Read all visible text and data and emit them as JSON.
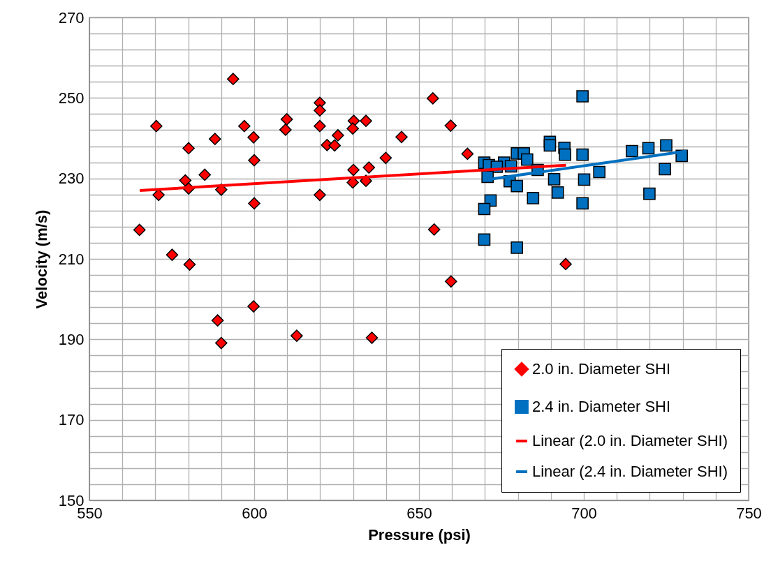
{
  "chart_data": {
    "type": "scatter",
    "xlabel": "Pressure (psi)",
    "ylabel": "Velocity (m/s)",
    "xlim": [
      550,
      750
    ],
    "ylim": [
      150,
      270
    ],
    "xticks": [
      550,
      {
        "value": 560,
        "label": null
      },
      {
        "value": 570,
        "label": null
      },
      {
        "value": 580,
        "label": null
      },
      {
        "value": 590,
        "label": null
      },
      600,
      {
        "value": 610,
        "label": null
      },
      {
        "value": 620,
        "label": null
      },
      {
        "value": 630,
        "label": null
      },
      {
        "value": 640,
        "label": null
      },
      650,
      {
        "value": 660,
        "label": null
      },
      {
        "value": 670,
        "label": null
      },
      {
        "value": 680,
        "label": null
      },
      {
        "value": 690,
        "label": null
      },
      700,
      {
        "value": 710,
        "label": null
      },
      {
        "value": 720,
        "label": null
      },
      {
        "value": 730,
        "label": null
      },
      {
        "value": 740,
        "label": null
      },
      750
    ],
    "yticks": [
      150,
      {
        "value": 154,
        "label": null
      },
      {
        "value": 158,
        "label": null
      },
      {
        "value": 162,
        "label": null
      },
      {
        "value": 166,
        "label": null
      },
      170,
      {
        "value": 174,
        "label": null
      },
      {
        "value": 178,
        "label": null
      },
      {
        "value": 182,
        "label": null
      },
      {
        "value": 186,
        "label": null
      },
      190,
      {
        "value": 194,
        "label": null
      },
      {
        "value": 198,
        "label": null
      },
      {
        "value": 202,
        "label": null
      },
      {
        "value": 206,
        "label": null
      },
      210,
      {
        "value": 214,
        "label": null
      },
      {
        "value": 218,
        "label": null
      },
      {
        "value": 222,
        "label": null
      },
      {
        "value": 226,
        "label": null
      },
      230,
      {
        "value": 234,
        "label": null
      },
      {
        "value": 238,
        "label": null
      },
      {
        "value": 242,
        "label": null
      },
      {
        "value": 246,
        "label": null
      },
      250,
      {
        "value": 254,
        "label": null
      },
      {
        "value": 258,
        "label": null
      },
      {
        "value": 262,
        "label": null
      },
      {
        "value": 266,
        "label": null
      },
      270
    ],
    "grid": true,
    "legend": "bottom right",
    "series": [
      {
        "name": "2.0 in. Diameter SHI",
        "marker": "diamond",
        "color": "#ff0000",
        "x": [
          593.6,
          619.9,
          619.9,
          570.3,
          597.0,
          609.9,
          609.5,
          619.9,
          588.1,
          599.8,
          580.1,
          622.1,
          600.0,
          585.0,
          579.1,
          580.1,
          590.0,
          571.0,
          619.9,
          600.0,
          565.2,
          575.1,
          580.4,
          599.8,
          588.9,
          590.0,
          612.9,
          630.2,
          629.9,
          633.9,
          625.4,
          624.4,
          644.7,
          654.2,
          659.6,
          664.7,
          639.9,
          630.1,
          634.8,
          629.9,
          633.9,
          654.6,
          659.7,
          635.7,
          694.5
        ],
        "values": [
          254.7,
          248.8,
          246.9,
          243.0,
          243.0,
          244.7,
          242.1,
          243.0,
          239.8,
          240.2,
          237.5,
          238.3,
          234.5,
          230.9,
          229.5,
          227.5,
          227.2,
          225.9,
          225.9,
          223.8,
          217.2,
          211.0,
          208.6,
          198.2,
          194.7,
          189.1,
          190.9,
          244.3,
          242.4,
          244.3,
          240.7,
          238.2,
          240.3,
          249.9,
          243.1,
          236.1,
          235.1,
          232.1,
          232.7,
          229.0,
          229.4,
          217.3,
          204.4,
          190.4,
          208.7
        ]
      },
      {
        "name": "2.4 in. Diameter SHI",
        "marker": "square",
        "color": "#0070c0",
        "x": [
          699.6,
          689.7,
          689.7,
          694.1,
          694.3,
          699.6,
          679.7,
          681.8,
          682.8,
          669.8,
          675.8,
          671.2,
          673.6,
          686.0,
          677.9,
          670.8,
          677.5,
          679.7,
          691.0,
          700.1,
          704.7,
          714.6,
          719.6,
          725.0,
          729.7,
          724.6,
          692.1,
          684.6,
          671.7,
          669.8,
          719.9,
          699.6,
          669.8,
          679.7
        ],
        "values": [
          250.4,
          239.1,
          238.2,
          237.6,
          235.9,
          235.9,
          236.2,
          236.2,
          234.7,
          233.9,
          233.9,
          233.3,
          232.9,
          232.1,
          233.0,
          230.4,
          229.3,
          228.1,
          229.8,
          229.7,
          231.6,
          236.8,
          237.5,
          238.2,
          235.6,
          232.3,
          226.5,
          225.1,
          224.5,
          222.4,
          226.2,
          223.8,
          214.8,
          212.8
        ]
      },
      {
        "name": "Linear (2.0 in. Diameter SHI)",
        "type": "line",
        "marker": "none",
        "color": "#ff0000",
        "x": [
          565.3,
          694.6
        ],
        "values": [
          227.0,
          233.3
        ]
      },
      {
        "name": "Linear (2.4 in. Diameter SHI)",
        "type": "line",
        "marker": "none",
        "color": "#0070c0",
        "x": [
          669.8,
          731.2
        ],
        "values": [
          229.6,
          236.8
        ]
      }
    ]
  }
}
